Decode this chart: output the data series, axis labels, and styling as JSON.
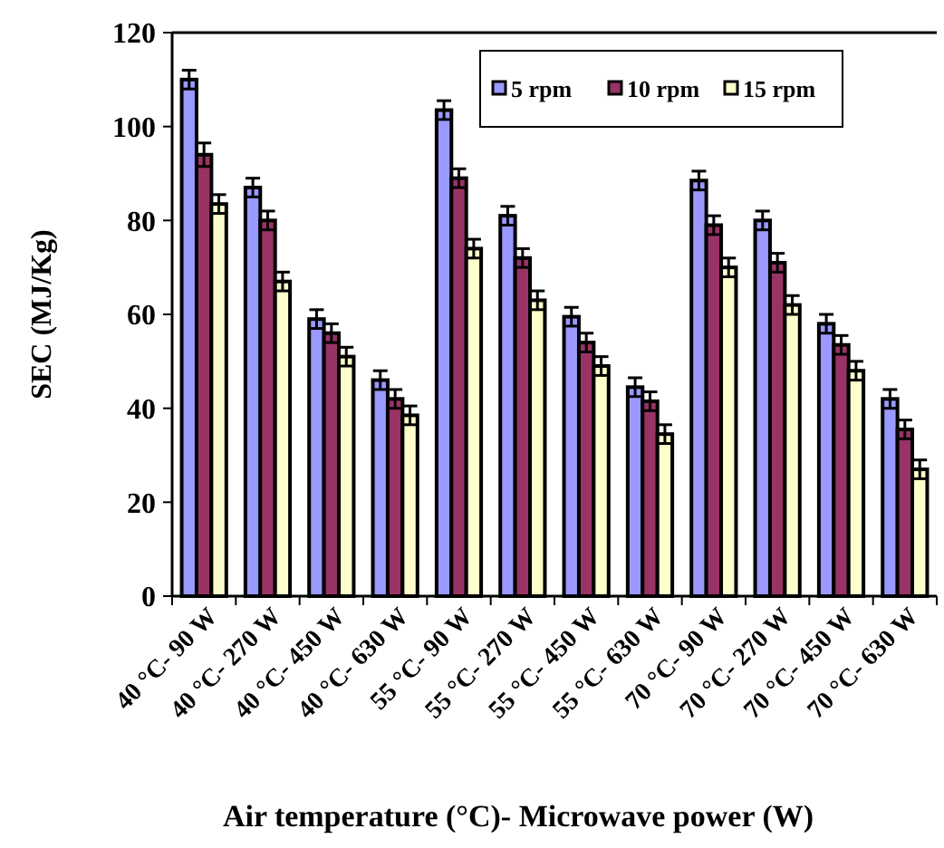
{
  "chart_data": {
    "type": "bar",
    "xlabel": "Air temperature (°C)- Microwave power (W)",
    "ylabel": "SEC (MJ/Kg)",
    "categories": [
      "40 °C- 90 W",
      "40 °C- 270 W",
      "40 °C- 450 W",
      "40 °C- 630 W",
      "55 °C- 90 W",
      "55 °C- 270 W",
      "55 °C- 450 W",
      "55 °C- 630 W",
      "70 °C- 90 W",
      "70 °C- 270 W",
      "70 °C- 450 W",
      "70 °C- 630 W"
    ],
    "series": [
      {
        "name": "5 rpm",
        "color": "#9999ff",
        "values": [
          110,
          87,
          59,
          46,
          103.5,
          81,
          59.5,
          44.5,
          88.5,
          80,
          58,
          42
        ],
        "errors": [
          2,
          2,
          2,
          2,
          2,
          2,
          2,
          2,
          2,
          2,
          2,
          2
        ]
      },
      {
        "name": "10 rpm",
        "color": "#993366",
        "values": [
          94,
          80,
          56,
          42,
          89,
          72,
          54,
          41.5,
          79,
          71,
          53.5,
          35.5
        ],
        "errors": [
          2.5,
          2,
          2,
          2,
          2,
          2,
          2,
          2,
          2,
          2,
          2,
          2
        ]
      },
      {
        "name": "15 rpm",
        "color": "#ffffcc",
        "values": [
          83.5,
          67,
          51,
          38.5,
          74,
          63,
          49,
          34.5,
          70,
          62,
          48,
          27
        ],
        "errors": [
          2,
          2,
          2,
          2,
          2,
          2,
          2,
          2,
          2,
          2,
          2,
          2
        ]
      }
    ],
    "ylim": [
      0,
      120
    ],
    "yticks": [
      0,
      20,
      40,
      60,
      80,
      100,
      120
    ],
    "legend": "top right",
    "grid": false
  }
}
